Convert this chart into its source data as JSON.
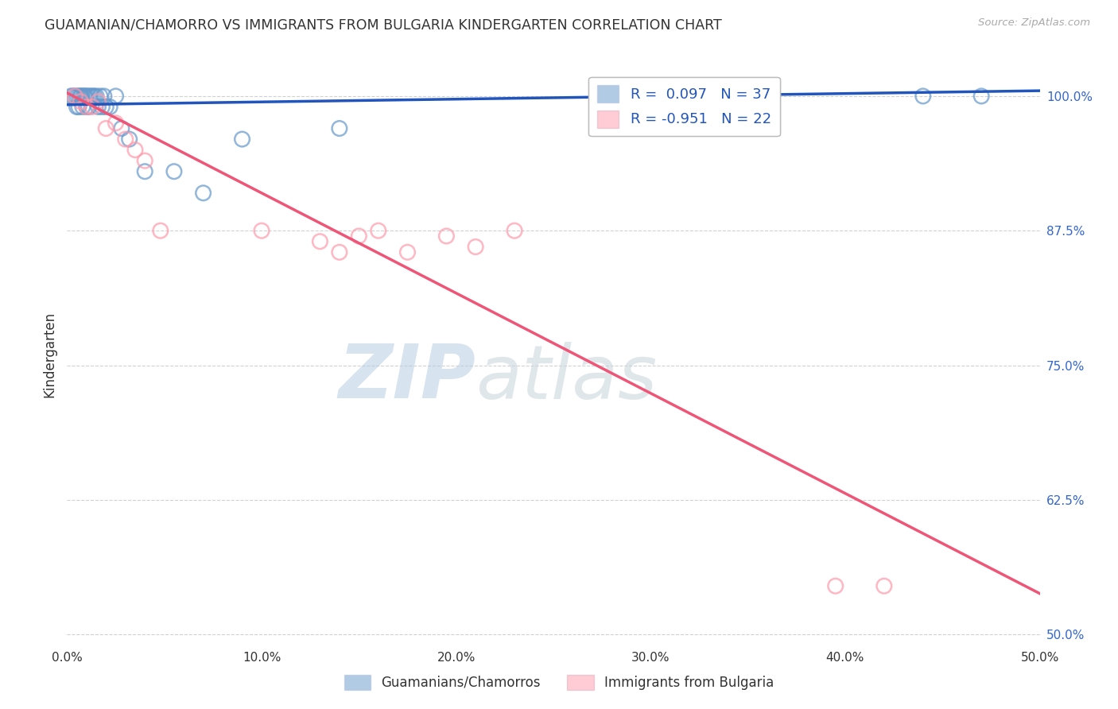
{
  "title": "GUAMANIAN/CHAMORRO VS IMMIGRANTS FROM BULGARIA KINDERGARTEN CORRELATION CHART",
  "source": "Source: ZipAtlas.com",
  "ylabel": "Kindergarten",
  "xlim": [
    0.0,
    0.5
  ],
  "ylim": [
    0.49,
    1.03
  ],
  "yticks": [
    0.5,
    0.625,
    0.75,
    0.875,
    1.0
  ],
  "ytick_labels": [
    "50.0%",
    "62.5%",
    "75.0%",
    "87.5%",
    "100.0%"
  ],
  "xticks": [
    0.0,
    0.1,
    0.2,
    0.3,
    0.4,
    0.5
  ],
  "xtick_labels": [
    "0.0%",
    "10.0%",
    "20.0%",
    "30.0%",
    "40.0%",
    "50.0%"
  ],
  "blue_scatter_x": [
    0.002,
    0.003,
    0.004,
    0.005,
    0.005,
    0.006,
    0.006,
    0.007,
    0.007,
    0.008,
    0.008,
    0.009,
    0.009,
    0.01,
    0.01,
    0.011,
    0.011,
    0.012,
    0.013,
    0.014,
    0.015,
    0.016,
    0.017,
    0.018,
    0.019,
    0.02,
    0.022,
    0.025,
    0.028,
    0.032,
    0.04,
    0.055,
    0.07,
    0.09,
    0.14,
    0.44,
    0.47
  ],
  "blue_scatter_y": [
    1.0,
    1.0,
    1.0,
    0.99,
    1.0,
    0.99,
    1.0,
    1.0,
    1.0,
    1.0,
    0.99,
    1.0,
    1.0,
    1.0,
    0.99,
    1.0,
    0.99,
    1.0,
    1.0,
    1.0,
    1.0,
    0.99,
    1.0,
    0.99,
    1.0,
    0.99,
    0.99,
    1.0,
    0.97,
    0.96,
    0.93,
    0.93,
    0.91,
    0.96,
    0.97,
    1.0,
    1.0
  ],
  "pink_scatter_x": [
    0.004,
    0.007,
    0.01,
    0.013,
    0.016,
    0.02,
    0.025,
    0.03,
    0.035,
    0.04,
    0.048,
    0.1,
    0.13,
    0.14,
    0.15,
    0.16,
    0.175,
    0.195,
    0.21,
    0.23,
    0.395,
    0.42
  ],
  "pink_scatter_y": [
    1.0,
    0.995,
    0.99,
    0.99,
    0.995,
    0.97,
    0.975,
    0.96,
    0.95,
    0.94,
    0.875,
    0.875,
    0.865,
    0.855,
    0.87,
    0.875,
    0.855,
    0.87,
    0.86,
    0.875,
    0.545,
    0.545
  ],
  "blue_line_x": [
    0.0,
    0.5
  ],
  "blue_line_y": [
    0.992,
    1.005
  ],
  "pink_line_x": [
    0.0,
    0.5
  ],
  "pink_line_y": [
    1.003,
    0.538
  ],
  "blue_color": "#6699CC",
  "pink_color": "#FF99AA",
  "blue_line_color": "#2255BB",
  "pink_line_color": "#EE5577",
  "legend_blue_label": "R =  0.097   N = 37",
  "legend_pink_label": "R = -0.951   N = 22",
  "watermark_zip": "ZIP",
  "watermark_atlas": "atlas",
  "title_color": "#333333",
  "axis_label_color": "#333333",
  "right_tick_color": "#3366CC",
  "grid_color": "#CCCCCC",
  "bottom_legend_blue": "Guamanians/Chamorros",
  "bottom_legend_pink": "Immigrants from Bulgaria"
}
